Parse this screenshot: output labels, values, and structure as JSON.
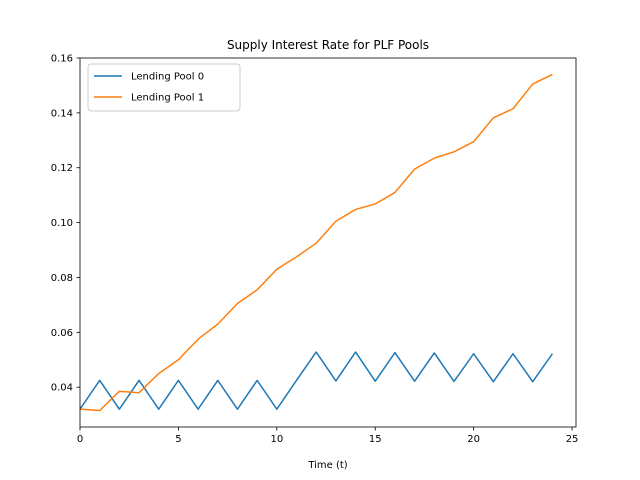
{
  "chart_data": {
    "type": "line",
    "title": "Supply Interest Rate for PLF Pools",
    "xlabel": "Time (t)",
    "ylabel": "",
    "xlim": [
      0,
      25.2
    ],
    "ylim": [
      0.0255,
      0.16
    ],
    "xticks": [
      0,
      5,
      10,
      15,
      20,
      25
    ],
    "yticks": [
      0.04,
      0.06,
      0.08,
      0.1,
      0.12,
      0.14,
      0.16
    ],
    "ytick_labels": [
      "0.04",
      "0.06",
      "0.08",
      "0.10",
      "0.12",
      "0.14",
      "0.16"
    ],
    "grid": false,
    "legend_position": "top-left",
    "x": [
      0,
      1,
      2,
      3,
      4,
      5,
      6,
      7,
      8,
      9,
      10,
      11,
      12,
      13,
      14,
      15,
      16,
      17,
      18,
      19,
      20,
      21,
      22,
      23,
      24
    ],
    "series": [
      {
        "name": "Lending Pool 0",
        "color": "#1f77b4",
        "values": [
          0.032,
          0.0425,
          0.032,
          0.0425,
          0.032,
          0.0425,
          0.032,
          0.0425,
          0.032,
          0.0425,
          0.032,
          0.0425,
          0.0528,
          0.0423,
          0.0528,
          0.0422,
          0.0526,
          0.0422,
          0.0525,
          0.0421,
          0.0522,
          0.042,
          0.0522,
          0.042,
          0.0522
        ]
      },
      {
        "name": "Lending Pool 1",
        "color": "#ff7f0e",
        "values": [
          0.032,
          0.0315,
          0.0385,
          0.038,
          0.045,
          0.05,
          0.0575,
          0.063,
          0.0705,
          0.0755,
          0.083,
          0.0875,
          0.0925,
          0.1005,
          0.1048,
          0.1068,
          0.111,
          0.1195,
          0.1235,
          0.1258,
          0.1295,
          0.1382,
          0.1415,
          0.1505,
          0.154
        ]
      }
    ]
  }
}
